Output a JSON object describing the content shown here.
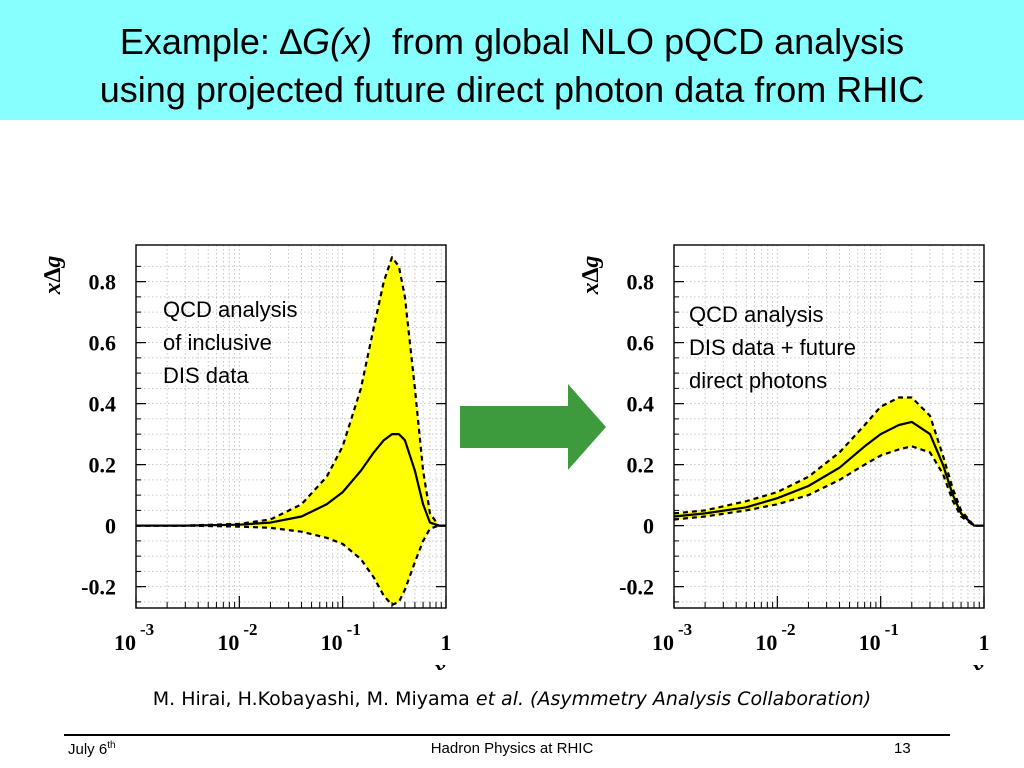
{
  "slide": {
    "title_prefix": "Example:",
    "title_delta": "∆",
    "title_var": "G(x)",
    "title_rest": "from global NLO pQCD analysis",
    "title_line2": "using projected future direct photon data from RHIC",
    "band_color": "#88ffff"
  },
  "citation": {
    "authors": "M. Hirai, H.Kobayashi, M. Miyama",
    "etal": "et al. (Asymmetry Analysis Collaboration)"
  },
  "footer": {
    "date": "July 6",
    "date_sup": "th",
    "center": "Hadron Physics at RHIC",
    "page": "13"
  },
  "arrow": {
    "color": "#3d9b3d"
  },
  "chart_data": [
    {
      "type": "line",
      "annotation": [
        "QCD analysis",
        "of inclusive",
        "DIS data"
      ],
      "xlabel": "x",
      "ylabel": "x∆g",
      "x_scale": "log",
      "xlim": [
        0.001,
        1
      ],
      "ylim": [
        -0.27,
        0.92
      ],
      "grid": true,
      "y_ticks": [
        "0.8",
        "0.6",
        "0.4",
        "0.2",
        "0",
        "-0.2"
      ],
      "y_tick_values": [
        0.8,
        0.6,
        0.4,
        0.2,
        0,
        -0.2
      ],
      "x_ticks": [
        {
          "base": "10",
          "exp": "-3",
          "value": 0.001
        },
        {
          "base": "10",
          "exp": "-2",
          "value": 0.01
        },
        {
          "base": "10",
          "exp": "-1",
          "value": 0.1
        },
        {
          "base": "1",
          "exp": "",
          "value": 1
        }
      ],
      "band_color": "#ffff00",
      "x": [
        0.001,
        0.003,
        0.01,
        0.02,
        0.04,
        0.07,
        0.1,
        0.15,
        0.2,
        0.25,
        0.3,
        0.35,
        0.4,
        0.5,
        0.6,
        0.7,
        0.85,
        1.0
      ],
      "series": [
        {
          "role": "central",
          "style": "solid",
          "values": [
            0.0,
            0.0,
            0.003,
            0.01,
            0.03,
            0.07,
            0.11,
            0.18,
            0.24,
            0.28,
            0.3,
            0.3,
            0.28,
            0.18,
            0.07,
            0.01,
            0.0,
            0.0
          ]
        },
        {
          "role": "upper",
          "style": "dashed",
          "values": [
            0.0,
            0.0,
            0.006,
            0.02,
            0.07,
            0.16,
            0.26,
            0.45,
            0.65,
            0.8,
            0.88,
            0.85,
            0.75,
            0.45,
            0.18,
            0.04,
            0.0,
            0.0
          ]
        },
        {
          "role": "lower",
          "style": "dashed",
          "values": [
            0.0,
            0.0,
            -0.003,
            -0.007,
            -0.02,
            -0.04,
            -0.06,
            -0.11,
            -0.17,
            -0.23,
            -0.26,
            -0.25,
            -0.21,
            -0.12,
            -0.05,
            -0.01,
            0.0,
            0.0
          ]
        }
      ]
    },
    {
      "type": "line",
      "annotation": [
        "QCD analysis",
        "DIS data + future",
        "direct photons"
      ],
      "xlabel": "x",
      "ylabel": "x∆g",
      "x_scale": "log",
      "xlim": [
        0.001,
        1
      ],
      "ylim": [
        -0.27,
        0.92
      ],
      "grid": true,
      "y_ticks": [
        "0.8",
        "0.6",
        "0.4",
        "0.2",
        "0",
        "-0.2"
      ],
      "y_tick_values": [
        0.8,
        0.6,
        0.4,
        0.2,
        0,
        -0.2
      ],
      "x_ticks": [
        {
          "base": "10",
          "exp": "-3",
          "value": 0.001
        },
        {
          "base": "10",
          "exp": "-2",
          "value": 0.01
        },
        {
          "base": "10",
          "exp": "-1",
          "value": 0.1
        },
        {
          "base": "1",
          "exp": "",
          "value": 1
        }
      ],
      "band_color": "#ffff00",
      "x": [
        0.001,
        0.002,
        0.005,
        0.01,
        0.02,
        0.04,
        0.07,
        0.1,
        0.15,
        0.2,
        0.3,
        0.4,
        0.5,
        0.6,
        0.8,
        1.0
      ],
      "series": [
        {
          "role": "central",
          "style": "solid",
          "values": [
            0.03,
            0.04,
            0.06,
            0.09,
            0.13,
            0.19,
            0.26,
            0.3,
            0.33,
            0.34,
            0.3,
            0.2,
            0.1,
            0.04,
            0.0,
            0.0
          ]
        },
        {
          "role": "upper",
          "style": "dashed",
          "values": [
            0.04,
            0.05,
            0.08,
            0.11,
            0.16,
            0.24,
            0.33,
            0.39,
            0.42,
            0.42,
            0.36,
            0.23,
            0.12,
            0.05,
            0.0,
            0.0
          ]
        },
        {
          "role": "lower",
          "style": "dashed",
          "values": [
            0.02,
            0.03,
            0.05,
            0.07,
            0.1,
            0.15,
            0.2,
            0.23,
            0.25,
            0.26,
            0.24,
            0.17,
            0.08,
            0.03,
            0.0,
            0.0
          ]
        }
      ]
    }
  ]
}
